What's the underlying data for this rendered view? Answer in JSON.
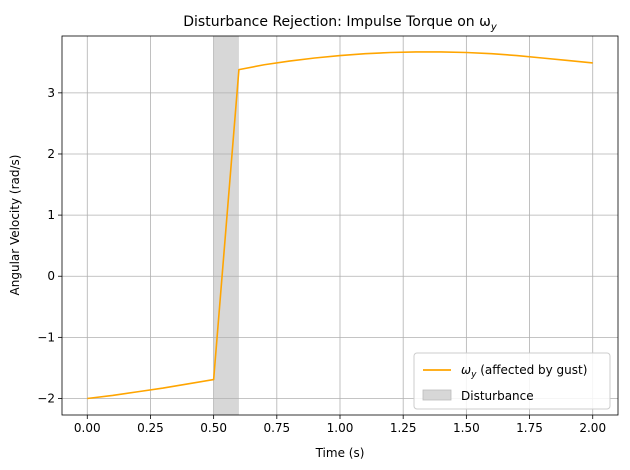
{
  "chart_data": {
    "type": "line",
    "title": "Disturbance Rejection: Impulse Torque on ω",
    "title_subscript": "y",
    "xlabel": "Time (s)",
    "ylabel": "Angular Velocity (rad/s)",
    "xlim": [
      -0.1,
      2.1
    ],
    "ylim": [
      -2.27,
      3.93
    ],
    "x_ticks": [
      0.0,
      0.25,
      0.5,
      0.75,
      1.0,
      1.25,
      1.5,
      1.75,
      2.0
    ],
    "x_tick_labels": [
      "0.00",
      "0.25",
      "0.50",
      "0.75",
      "1.00",
      "1.25",
      "1.50",
      "1.75",
      "2.00"
    ],
    "y_ticks": [
      -2,
      -1,
      0,
      1,
      2,
      3
    ],
    "y_tick_labels": [
      "−2",
      "−1",
      "0",
      "1",
      "2",
      "3"
    ],
    "grid": true,
    "legend_position": "lower-right",
    "series": [
      {
        "name_symbol": "ω",
        "name_subscript": "y",
        "name_rest": " (affected by gust)",
        "color": "#ffa500",
        "x": [
          0.0,
          0.1,
          0.2,
          0.3,
          0.4,
          0.5,
          0.6,
          0.7,
          0.8,
          0.9,
          1.0,
          1.1,
          1.2,
          1.3,
          1.4,
          1.5,
          1.6,
          1.7,
          1.8,
          1.9,
          2.0
        ],
        "y": [
          -2.0,
          -1.95,
          -1.89,
          -1.83,
          -1.76,
          -1.69,
          3.38,
          3.46,
          3.52,
          3.57,
          3.61,
          3.64,
          3.66,
          3.67,
          3.67,
          3.66,
          3.64,
          3.61,
          3.57,
          3.53,
          3.49
        ]
      }
    ],
    "disturbance": {
      "name": "Disturbance",
      "x_start": 0.5,
      "x_end": 0.6,
      "color": "#d7d7d7"
    }
  }
}
